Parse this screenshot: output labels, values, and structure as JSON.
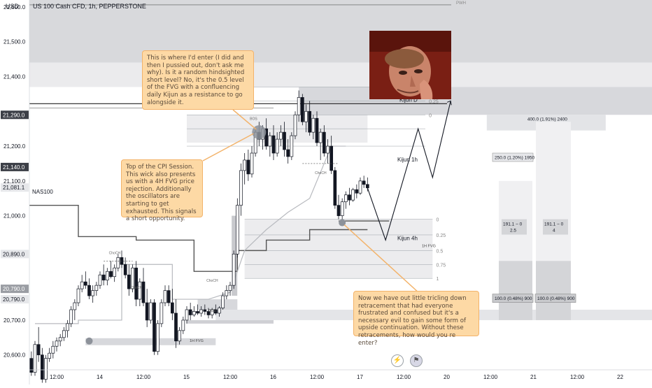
{
  "header": {
    "currency": "USD",
    "instrument": "US 100 Cash CFD, 1h, PEPPERSTONE"
  },
  "chart_data": {
    "type": "candlestick",
    "y_axis": {
      "range": [
        20515,
        21620
      ],
      "ticks": [
        "21,600.0",
        "21,500.0",
        "21,400.0",
        "21,200.0",
        "21,100.0",
        "21,000.0",
        "20,890.0",
        "20,700.0",
        "20,600.0"
      ],
      "tick_values": [
        21600,
        21500,
        21400,
        21200,
        21100,
        21000,
        20890,
        20700,
        20600
      ],
      "badges": [
        {
          "label": "21,290.0",
          "value": 21290,
          "style": "dark"
        },
        {
          "label": "21,140.0",
          "value": 21140,
          "style": "dark"
        },
        {
          "label": "21,081.1",
          "value": 21081.1,
          "style": "light"
        },
        {
          "label": "20,890.0",
          "value": 20890,
          "style": "light"
        },
        {
          "label": "20,790.0",
          "value": 20790,
          "style": "gray"
        },
        {
          "label": "20,790.0",
          "value": 20760,
          "style": "light"
        }
      ]
    },
    "x_axis": {
      "labels": [
        "12:00",
        "14",
        "12:00",
        "15",
        "12:00",
        "16",
        "12:00",
        "17",
        "12:00",
        "20",
        "12:00",
        "21",
        "12:00",
        "22"
      ],
      "hours": [
        -12,
        0,
        12,
        24,
        36,
        48,
        60,
        72,
        84,
        96,
        108,
        120,
        132,
        144
      ]
    },
    "candles": [
      [
        -26,
        20640,
        20680,
        20630,
        20665
      ],
      [
        -25,
        20665,
        20700,
        20640,
        20655
      ],
      [
        -24,
        20655,
        20680,
        20600,
        20610
      ],
      [
        -23,
        20610,
        20660,
        20600,
        20650
      ],
      [
        -22,
        20650,
        20670,
        20560,
        20570
      ],
      [
        -21,
        20570,
        20590,
        20520,
        20540
      ],
      [
        -20,
        20540,
        20600,
        20530,
        20590
      ],
      [
        -19,
        20590,
        20610,
        20540,
        20550
      ],
      [
        -18,
        20550,
        20640,
        20540,
        20630
      ],
      [
        -17,
        20630,
        20680,
        20580,
        20600
      ],
      [
        -16,
        20600,
        20620,
        20520,
        20530
      ],
      [
        -15,
        20530,
        20600,
        20520,
        20590
      ],
      [
        -14,
        20590,
        20620,
        20580,
        20605
      ],
      [
        -13,
        20605,
        20640,
        20590,
        20625
      ],
      [
        -12,
        20625,
        20650,
        20610,
        20640
      ],
      [
        -11,
        20640,
        20660,
        20625,
        20650
      ],
      [
        -10,
        20650,
        20680,
        20640,
        20670
      ],
      [
        -9,
        20670,
        20700,
        20650,
        20690
      ],
      [
        -8,
        20690,
        20740,
        20680,
        20730
      ],
      [
        -7,
        20730,
        20760,
        20700,
        20750
      ],
      [
        -6,
        20750,
        20800,
        20740,
        20790
      ],
      [
        -5,
        20790,
        20830,
        20780,
        20810
      ],
      [
        -4,
        20810,
        20840,
        20790,
        20800
      ],
      [
        -3,
        20800,
        20820,
        20760,
        20770
      ],
      [
        -2,
        20770,
        20800,
        20750,
        20785
      ],
      [
        -1,
        20785,
        20810,
        20770,
        20800
      ],
      [
        0,
        20800,
        20840,
        20790,
        20830
      ],
      [
        1,
        20830,
        20860,
        20800,
        20815
      ],
      [
        2,
        20815,
        20850,
        20800,
        20840
      ],
      [
        3,
        20840,
        20870,
        20820,
        20825
      ],
      [
        4,
        20825,
        20860,
        20810,
        20850
      ],
      [
        5,
        20850,
        20890,
        20840,
        20880
      ],
      [
        6,
        20880,
        20900,
        20850,
        20860
      ],
      [
        7,
        20860,
        20880,
        20820,
        20830
      ],
      [
        8,
        20830,
        20860,
        20770,
        20790
      ],
      [
        9,
        20790,
        20860,
        20780,
        20850
      ],
      [
        10,
        20850,
        20870,
        20740,
        20760
      ],
      [
        11,
        20760,
        20820,
        20740,
        20810
      ],
      [
        12,
        20810,
        20850,
        20740,
        20750
      ],
      [
        13,
        20750,
        20790,
        20680,
        20700
      ],
      [
        14,
        20700,
        20760,
        20690,
        20750
      ],
      [
        15,
        20750,
        20760,
        20600,
        20610
      ],
      [
        16,
        20610,
        20700,
        20600,
        20690
      ],
      [
        17,
        20690,
        20760,
        20680,
        20750
      ],
      [
        18,
        20750,
        20800,
        20740,
        20785
      ],
      [
        19,
        20785,
        20800,
        20740,
        20750
      ],
      [
        20,
        20750,
        20790,
        20700,
        20720
      ],
      [
        21,
        20720,
        20760,
        20620,
        20640
      ],
      [
        22,
        20640,
        20680,
        20630,
        20670
      ],
      [
        23,
        20670,
        20710,
        20660,
        20700
      ],
      [
        24,
        20700,
        20740,
        20690,
        20730
      ],
      [
        25,
        20730,
        20750,
        20700,
        20715
      ],
      [
        26,
        20715,
        20740,
        20710,
        20725
      ],
      [
        27,
        20725,
        20745,
        20715,
        20720
      ],
      [
        28,
        20720,
        20740,
        20710,
        20730
      ],
      [
        29,
        20730,
        20745,
        20715,
        20725
      ],
      [
        30,
        20725,
        20735,
        20705,
        20715
      ],
      [
        31,
        20715,
        20735,
        20705,
        20730
      ],
      [
        32,
        20730,
        20745,
        20715,
        20720
      ],
      [
        33,
        20720,
        20740,
        20710,
        20735
      ],
      [
        34,
        20735,
        20780,
        20730,
        20770
      ],
      [
        35,
        20770,
        20800,
        20760,
        20785
      ],
      [
        36,
        20785,
        20810,
        20770,
        20800
      ],
      [
        37,
        20800,
        20900,
        20790,
        20890
      ],
      [
        38,
        20890,
        21050,
        20880,
        21030
      ],
      [
        39,
        21030,
        21150,
        21000,
        21130
      ],
      [
        40,
        21130,
        21180,
        21090,
        21160
      ],
      [
        41,
        21160,
        21190,
        21100,
        21120
      ],
      [
        42,
        21120,
        21200,
        21110,
        21180
      ],
      [
        43,
        21180,
        21250,
        21170,
        21240
      ],
      [
        44,
        21240,
        21270,
        21200,
        21220
      ],
      [
        45,
        21220,
        21260,
        21190,
        21250
      ],
      [
        46,
        21250,
        21280,
        21190,
        21200
      ],
      [
        47,
        21200,
        21240,
        21170,
        21230
      ],
      [
        48,
        21230,
        21260,
        21160,
        21180
      ],
      [
        49,
        21180,
        21240,
        21170,
        21220
      ],
      [
        50,
        21220,
        21260,
        21200,
        21240
      ],
      [
        51,
        21240,
        21270,
        21170,
        21190
      ],
      [
        52,
        21190,
        21220,
        21150,
        21170
      ],
      [
        53,
        21170,
        21240,
        21160,
        21230
      ],
      [
        54,
        21230,
        21300,
        21220,
        21290
      ],
      [
        55,
        21290,
        21360,
        21270,
        21340
      ],
      [
        56,
        21340,
        21350,
        21260,
        21270
      ],
      [
        57,
        21270,
        21320,
        21240,
        21300
      ],
      [
        58,
        21300,
        21330,
        21230,
        21240
      ],
      [
        59,
        21240,
        21290,
        21220,
        21280
      ],
      [
        60,
        21280,
        21300,
        21200,
        21210
      ],
      [
        61,
        21210,
        21250,
        21160,
        21240
      ],
      [
        62,
        21240,
        21260,
        21170,
        21180
      ],
      [
        63,
        21180,
        21220,
        21150,
        21200
      ],
      [
        64,
        21200,
        21230,
        21120,
        21130
      ],
      [
        65,
        21130,
        21140,
        21020,
        21030
      ],
      [
        66,
        21030,
        21060,
        20990,
        21000
      ],
      [
        67,
        21000,
        21050,
        20990,
        21040
      ],
      [
        68,
        21040,
        21070,
        21020,
        21060
      ],
      [
        69,
        21060,
        21080,
        21030,
        21045
      ],
      [
        70,
        21045,
        21080,
        21040,
        21075
      ],
      [
        71,
        21075,
        21090,
        21050,
        21065
      ],
      [
        72,
        21065,
        21110,
        21060,
        21100
      ],
      [
        73,
        21100,
        21115,
        21080,
        21090
      ],
      [
        74,
        21090,
        21110,
        21070,
        21080
      ]
    ],
    "zones": [
      {
        "label": "4H FVG",
        "from": 21290,
        "to": 21370
      },
      {
        "label": "1H FVG",
        "from": 20730,
        "to": 20760
      },
      {
        "label": "1H FVG",
        "from": 20628,
        "to": 20648
      }
    ],
    "levels": [
      {
        "label": "Kijun D",
        "value": 21322
      },
      {
        "label": "Kijun 1h",
        "value": 21160
      },
      {
        "label": "Kijun 4h",
        "value": 20938
      },
      {
        "label": "PWH",
        "value": 21600
      }
    ],
    "fib_upper": {
      "labels": [
        "0.5",
        "0.25",
        "0"
      ]
    },
    "fib_lower": {
      "labels": [
        "0",
        "0.25",
        "0.5",
        "0.75",
        "1"
      ]
    },
    "structure_labels": [
      "ChoCH",
      "ChoCH",
      "ChoCH",
      "ChoCH",
      "BOS",
      "ChoCH",
      "CH"
    ],
    "instrument_tag": "NAS100",
    "projection_boxes": [
      {
        "top": "400.0 (1.91%) 2400",
        "mid": "250.0 (1.20%) 1950",
        "ratio": "191.1 − 0\n2.5",
        "base": "100.0 (0.48%) 900"
      },
      {
        "ratio": "191.1 − 0\n4",
        "base": "100.0 (0.48%) 900"
      }
    ],
    "grid": false,
    "legend": "none"
  },
  "notes": {
    "enter": "This is where I'd enter (I did and then I pussied out, don't ask me why). Is it a random hindsighted short level? No, it's the 0.5 level of the FVG with a confluencing daily Kijun as a resistance to go alongside it.",
    "cpi": "Top of the CPI Session. This wick also presents us with a 4H FVG price rejection. Additionally the oscillators are starting to get exhausted. This signals a short opportunity.",
    "retrace": "Now we have out little tricling down retracement that had everyone frustrated and confused but it's a necessary evil to gain some form of upside continuation. Without these retracements, how would you re enter?"
  },
  "colors": {
    "up_candle": "#ffffff",
    "down_candle": "#131722",
    "note_bg": "#fdd9a5",
    "zone": "#d3d4d8",
    "badge_dark": "#3c3f47"
  }
}
